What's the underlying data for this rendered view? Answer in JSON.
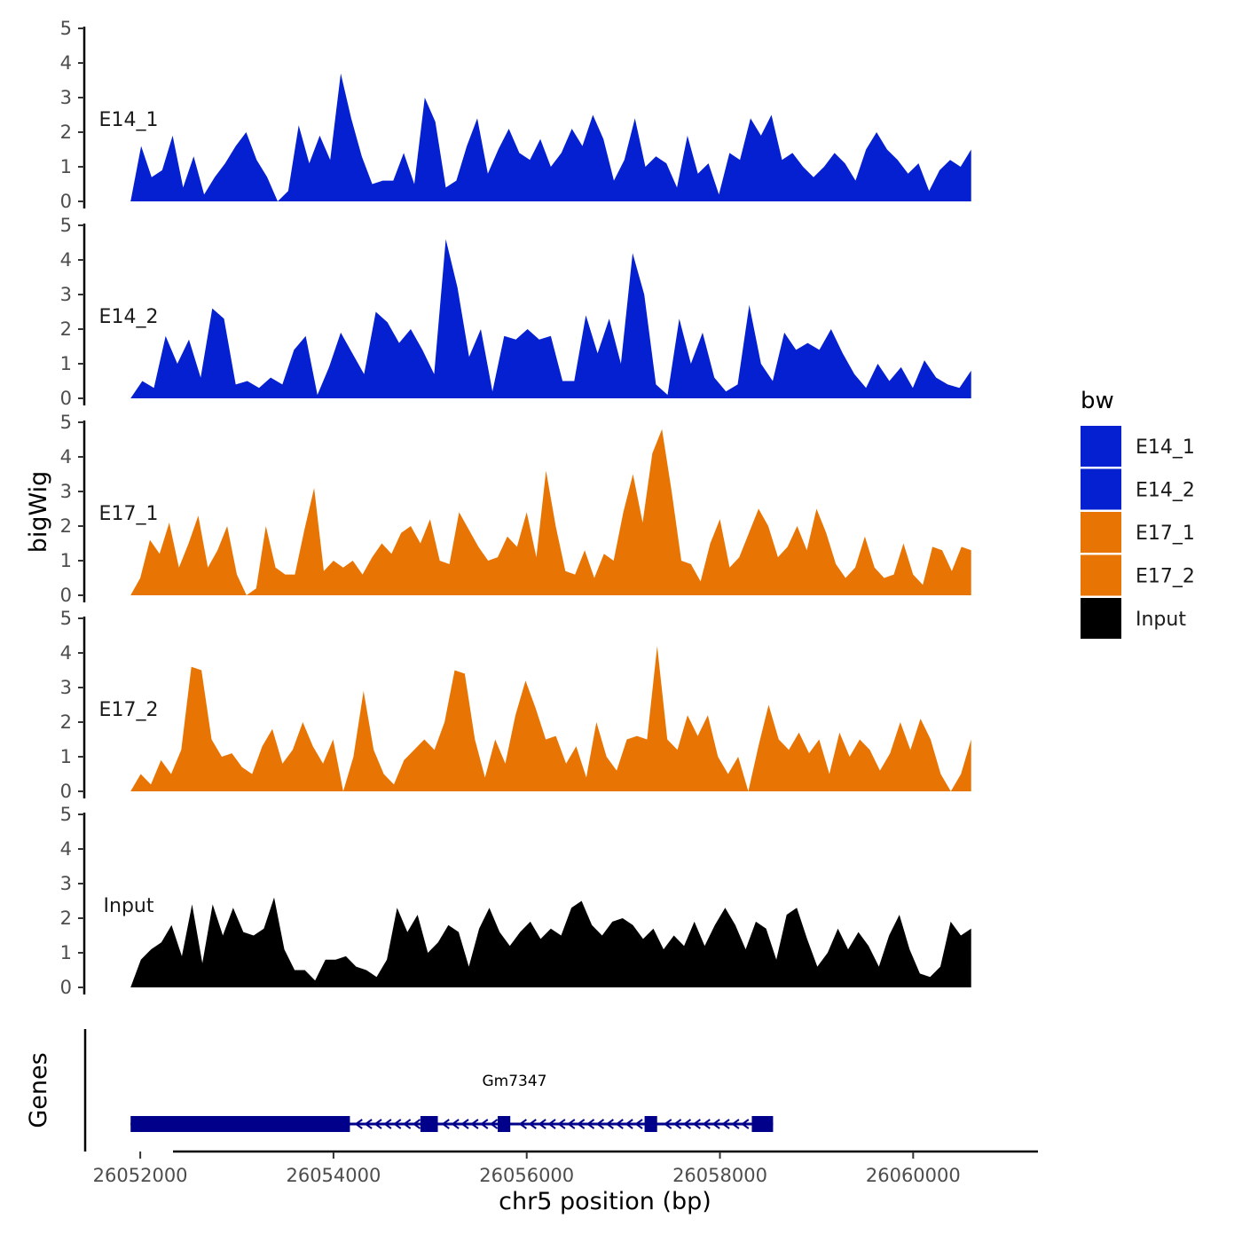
{
  "chart_data": {
    "type": "area",
    "ylabel": "bigWig",
    "xlabel": "chr5 position (bp)",
    "ylim": [
      0,
      5
    ],
    "y_ticks": [
      "0",
      "1",
      "2",
      "3",
      "4",
      "5"
    ],
    "xlim": [
      26051650,
      26061200
    ],
    "x_range_data": [
      26051900,
      26060600
    ],
    "x_ticks": [
      {
        "value": 26052000,
        "label": "26052000"
      },
      {
        "value": 26054000,
        "label": "26054000"
      },
      {
        "value": 26056000,
        "label": "26056000"
      },
      {
        "value": 26058000,
        "label": "26058000"
      },
      {
        "value": 26060000,
        "label": "26060000"
      }
    ],
    "legend": {
      "title": "bw",
      "entries": [
        {
          "label": "E14_1",
          "color": "#0420d0"
        },
        {
          "label": "E14_2",
          "color": "#0420d0"
        },
        {
          "label": "E17_1",
          "color": "#e87503"
        },
        {
          "label": "E17_2",
          "color": "#e87503"
        },
        {
          "label": "Input",
          "color": "#000000"
        }
      ]
    },
    "series": [
      {
        "name": "E14_1",
        "color": "#0420d0",
        "values": [
          0,
          1.6,
          0.7,
          0.9,
          1.9,
          0.4,
          1.3,
          0.2,
          0.7,
          1.1,
          1.6,
          2.0,
          1.2,
          0.7,
          0,
          0.3,
          2.2,
          1.1,
          1.9,
          1.2,
          3.7,
          2.4,
          1.3,
          0.5,
          0.6,
          0.6,
          1.4,
          0.5,
          3.0,
          2.3,
          0.4,
          0.6,
          1.6,
          2.4,
          0.8,
          1.5,
          2.1,
          1.4,
          1.2,
          1.8,
          1.0,
          1.4,
          2.1,
          1.6,
          2.5,
          1.8,
          0.6,
          1.2,
          2.4,
          1.0,
          1.3,
          1.1,
          0.4,
          1.9,
          0.8,
          1.1,
          0.2,
          1.4,
          1.2,
          2.4,
          1.9,
          2.5,
          1.2,
          1.4,
          1.0,
          0.7,
          1.0,
          1.4,
          1.1,
          0.6,
          1.5,
          2.0,
          1.5,
          1.2,
          0.8,
          1.1,
          0.3,
          0.9,
          1.2,
          1.0,
          1.5
        ]
      },
      {
        "name": "E14_2",
        "color": "#0420d0",
        "values": [
          0,
          0.5,
          0.3,
          1.8,
          1.0,
          1.7,
          0.6,
          2.6,
          2.3,
          0.4,
          0.5,
          0.3,
          0.6,
          0.4,
          1.4,
          1.8,
          0.1,
          0.9,
          1.9,
          1.3,
          0.7,
          2.5,
          2.2,
          1.6,
          2.0,
          1.4,
          0.7,
          4.6,
          3.2,
          1.2,
          2.0,
          0.2,
          1.8,
          1.7,
          2.0,
          1.7,
          1.8,
          0.5,
          0.5,
          2.4,
          1.3,
          2.3,
          1.0,
          4.2,
          3.0,
          0.4,
          0.1,
          2.3,
          1.0,
          1.9,
          0.6,
          0.2,
          0.4,
          2.7,
          1.0,
          0.5,
          1.9,
          1.4,
          1.6,
          1.4,
          2.0,
          1.3,
          0.7,
          0.3,
          1.0,
          0.5,
          0.9,
          0.3,
          1.1,
          0.6,
          0.4,
          0.3,
          0.8
        ]
      },
      {
        "name": "E17_1",
        "color": "#e87503",
        "values": [
          0,
          0.5,
          1.6,
          1.2,
          2.1,
          0.8,
          1.5,
          2.3,
          0.8,
          1.3,
          2.0,
          0.6,
          0,
          0.2,
          2.0,
          0.8,
          0.6,
          0.6,
          1.9,
          3.1,
          0.7,
          1.0,
          0.8,
          1.0,
          0.6,
          1.1,
          1.5,
          1.2,
          1.8,
          2.0,
          1.5,
          2.2,
          1.0,
          0.9,
          2.4,
          1.9,
          1.4,
          1.0,
          1.1,
          1.7,
          1.4,
          2.4,
          1.1,
          3.6,
          2.0,
          0.7,
          0.6,
          1.3,
          0.5,
          1.2,
          1.0,
          2.4,
          3.5,
          2.1,
          4.1,
          4.8,
          3.0,
          1.0,
          0.9,
          0.4,
          1.5,
          2.2,
          0.8,
          1.1,
          1.8,
          2.5,
          2.0,
          1.1,
          1.4,
          2.0,
          1.3,
          2.5,
          1.8,
          0.9,
          0.5,
          0.8,
          1.7,
          0.8,
          0.5,
          0.6,
          1.5,
          0.6,
          0.3,
          1.4,
          1.3,
          0.7,
          1.4,
          1.3
        ]
      },
      {
        "name": "E17_2",
        "color": "#e87503",
        "values": [
          0,
          0.5,
          0.2,
          0.9,
          0.5,
          1.2,
          3.6,
          3.5,
          1.5,
          1.0,
          1.1,
          0.7,
          0.5,
          1.3,
          1.8,
          0.8,
          1.2,
          2.0,
          1.3,
          0.8,
          1.5,
          0,
          1.0,
          2.9,
          1.2,
          0.5,
          0.2,
          0.9,
          1.2,
          1.5,
          1.2,
          2.0,
          3.5,
          3.4,
          1.5,
          0.4,
          1.5,
          0.8,
          2.2,
          3.2,
          2.4,
          1.5,
          1.6,
          0.8,
          1.3,
          0.4,
          2.0,
          1.0,
          0.6,
          1.5,
          1.6,
          1.5,
          4.2,
          1.5,
          1.2,
          2.2,
          1.6,
          2.2,
          1.0,
          0.5,
          1.0,
          0,
          1.3,
          2.5,
          1.5,
          1.2,
          1.7,
          1.1,
          1.5,
          0.5,
          1.7,
          1.0,
          1.5,
          1.2,
          0.6,
          1.1,
          2.0,
          1.2,
          2.1,
          1.5,
          0.5,
          0,
          0.5,
          1.5
        ]
      },
      {
        "name": "Input",
        "color": "#000000",
        "values": [
          0,
          0.8,
          1.1,
          1.3,
          1.8,
          0.9,
          2.4,
          0.7,
          2.4,
          1.5,
          2.3,
          1.6,
          1.5,
          1.7,
          2.6,
          1.1,
          0.5,
          0.5,
          0.2,
          0.8,
          0.8,
          0.9,
          0.6,
          0.5,
          0.3,
          0.8,
          2.3,
          1.6,
          2.1,
          1.0,
          1.3,
          1.8,
          1.6,
          0.6,
          1.7,
          2.3,
          1.6,
          1.2,
          1.6,
          1.9,
          1.4,
          1.7,
          1.5,
          2.3,
          2.5,
          1.8,
          1.5,
          1.9,
          2.0,
          1.8,
          1.4,
          1.7,
          1.1,
          1.5,
          1.2,
          1.9,
          1.2,
          1.8,
          2.3,
          1.8,
          1.1,
          1.9,
          1.7,
          0.8,
          2.1,
          2.3,
          1.4,
          0.6,
          1.0,
          1.7,
          1.1,
          1.6,
          1.2,
          0.6,
          1.5,
          2.1,
          1.1,
          0.4,
          0.3,
          0.6,
          1.9,
          1.5,
          1.7
        ]
      }
    ],
    "genes": {
      "title": "Genes",
      "name": "Gm7347",
      "color": "#00008b",
      "strand": "-",
      "start": 26051900,
      "end": 26058550,
      "exons": [
        {
          "start": 26051900,
          "end": 26054170
        },
        {
          "start": 26054900,
          "end": 26055080
        },
        {
          "start": 26055700,
          "end": 26055830
        },
        {
          "start": 26057220,
          "end": 26057350
        },
        {
          "start": 26058330,
          "end": 26058550
        }
      ]
    }
  }
}
